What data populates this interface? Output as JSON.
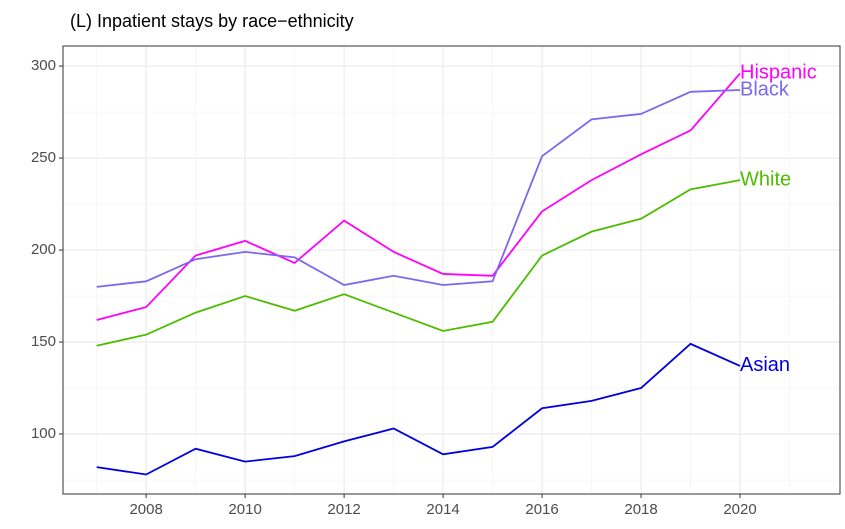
{
  "chart_data": {
    "type": "line",
    "title": "(L) Inpatient stays by race−ethnicity",
    "x": [
      2007,
      2008,
      2009,
      2010,
      2011,
      2012,
      2013,
      2014,
      2015,
      2016,
      2017,
      2018,
      2019,
      2020
    ],
    "series": [
      {
        "name": "Hispanic",
        "color": "#ff00ff",
        "values": [
          162,
          169,
          197,
          205,
          193,
          216,
          199,
          187,
          186,
          221,
          238,
          252,
          265,
          296
        ]
      },
      {
        "name": "Black",
        "color": "#7b68ee",
        "values": [
          180,
          183,
          195,
          199,
          196,
          181,
          186,
          181,
          183,
          251,
          271,
          274,
          286,
          287
        ]
      },
      {
        "name": "White",
        "color": "#4dbd00",
        "values": [
          148,
          154,
          166,
          175,
          167,
          176,
          166,
          156,
          161,
          197,
          210,
          217,
          233,
          238
        ]
      },
      {
        "name": "Asian",
        "color": "#0000e0",
        "values": [
          82,
          78,
          92,
          85,
          88,
          96,
          103,
          89,
          93,
          114,
          118,
          125,
          149,
          137
        ]
      }
    ],
    "xlim": [
      2006.32,
      2022.02
    ],
    "xticks": [
      2008,
      2010,
      2012,
      2014,
      2016,
      2018,
      2020
    ],
    "ylim": [
      67.4,
      310.9
    ],
    "yticks": [
      100,
      150,
      200,
      250,
      300
    ],
    "grid": true
  }
}
